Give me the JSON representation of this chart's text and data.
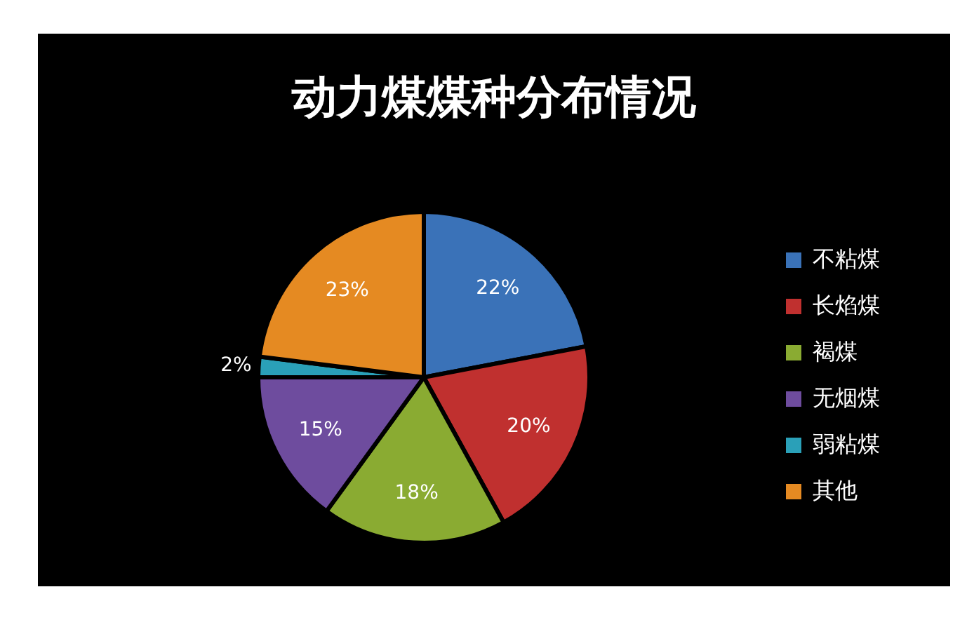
{
  "chart_data": {
    "type": "pie",
    "title": "动力煤煤种分布情况",
    "categories": [
      "不粘煤",
      "长焰煤",
      "褐煤",
      "无烟煤",
      "弱粘煤",
      "其他"
    ],
    "values": [
      22,
      20,
      18,
      15,
      2,
      23
    ],
    "colors": [
      "#3a72b8",
      "#c0302f",
      "#8aab32",
      "#6e4c9e",
      "#2aa0b8",
      "#e58a22"
    ],
    "value_labels": [
      "22%",
      "20%",
      "18%",
      "15%",
      "2%",
      "23%"
    ],
    "legend": "right"
  }
}
